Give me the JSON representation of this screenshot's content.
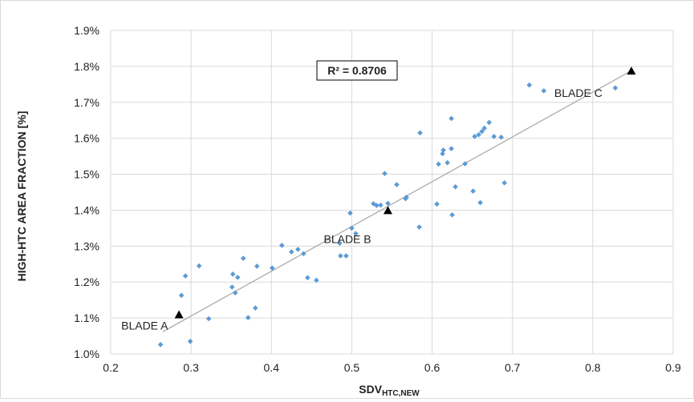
{
  "chart_data": {
    "type": "scatter",
    "xlabel_main": "SDV",
    "xlabel_sub": "HTC,NEW",
    "ylabel": "HIGH-HTC AREA FRACTION [%]",
    "xlim": [
      0.2,
      0.9
    ],
    "ylim": [
      1.0,
      1.9
    ],
    "x_ticks": [
      "0.2",
      "0.3",
      "0.4",
      "0.5",
      "0.6",
      "0.7",
      "0.8",
      "0.9"
    ],
    "y_ticks": [
      "1.0%",
      "1.1%",
      "1.2%",
      "1.3%",
      "1.4%",
      "1.5%",
      "1.6%",
      "1.7%",
      "1.8%",
      "1.9%"
    ],
    "grid": true,
    "marker_color": "#5b9bd5",
    "trend_color": "#a6a6a6",
    "annotation": "R² = 0.8706",
    "trendline": {
      "x": [
        0.265,
        0.848
      ],
      "y": [
        1.062,
        1.788
      ]
    },
    "points": [
      {
        "x": 0.262,
        "y": 1.026
      },
      {
        "x": 0.288,
        "y": 1.163
      },
      {
        "x": 0.293,
        "y": 1.217
      },
      {
        "x": 0.299,
        "y": 1.035
      },
      {
        "x": 0.31,
        "y": 1.245
      },
      {
        "x": 0.322,
        "y": 1.098
      },
      {
        "x": 0.351,
        "y": 1.186
      },
      {
        "x": 0.352,
        "y": 1.222
      },
      {
        "x": 0.355,
        "y": 1.17
      },
      {
        "x": 0.358,
        "y": 1.213
      },
      {
        "x": 0.365,
        "y": 1.266
      },
      {
        "x": 0.371,
        "y": 1.101
      },
      {
        "x": 0.38,
        "y": 1.128
      },
      {
        "x": 0.382,
        "y": 1.244
      },
      {
        "x": 0.401,
        "y": 1.239
      },
      {
        "x": 0.413,
        "y": 1.302
      },
      {
        "x": 0.425,
        "y": 1.284
      },
      {
        "x": 0.433,
        "y": 1.291
      },
      {
        "x": 0.44,
        "y": 1.279
      },
      {
        "x": 0.445,
        "y": 1.212
      },
      {
        "x": 0.456,
        "y": 1.205
      },
      {
        "x": 0.485,
        "y": 1.308
      },
      {
        "x": 0.486,
        "y": 1.273
      },
      {
        "x": 0.493,
        "y": 1.273
      },
      {
        "x": 0.498,
        "y": 1.392
      },
      {
        "x": 0.5,
        "y": 1.35
      },
      {
        "x": 0.505,
        "y": 1.335
      },
      {
        "x": 0.527,
        "y": 1.418
      },
      {
        "x": 0.531,
        "y": 1.413
      },
      {
        "x": 0.536,
        "y": 1.414
      },
      {
        "x": 0.541,
        "y": 1.502
      },
      {
        "x": 0.545,
        "y": 1.419
      },
      {
        "x": 0.556,
        "y": 1.471
      },
      {
        "x": 0.567,
        "y": 1.432
      },
      {
        "x": 0.568,
        "y": 1.436
      },
      {
        "x": 0.584,
        "y": 1.353
      },
      {
        "x": 0.585,
        "y": 1.615
      },
      {
        "x": 0.606,
        "y": 1.417
      },
      {
        "x": 0.608,
        "y": 1.528
      },
      {
        "x": 0.613,
        "y": 1.557
      },
      {
        "x": 0.614,
        "y": 1.567
      },
      {
        "x": 0.619,
        "y": 1.532
      },
      {
        "x": 0.624,
        "y": 1.655
      },
      {
        "x": 0.624,
        "y": 1.571
      },
      {
        "x": 0.625,
        "y": 1.387
      },
      {
        "x": 0.629,
        "y": 1.465
      },
      {
        "x": 0.641,
        "y": 1.529
      },
      {
        "x": 0.651,
        "y": 1.453
      },
      {
        "x": 0.653,
        "y": 1.605
      },
      {
        "x": 0.658,
        "y": 1.61
      },
      {
        "x": 0.66,
        "y": 1.421
      },
      {
        "x": 0.662,
        "y": 1.619
      },
      {
        "x": 0.665,
        "y": 1.628
      },
      {
        "x": 0.671,
        "y": 1.644
      },
      {
        "x": 0.677,
        "y": 1.605
      },
      {
        "x": 0.686,
        "y": 1.603
      },
      {
        "x": 0.69,
        "y": 1.476
      },
      {
        "x": 0.721,
        "y": 1.748
      },
      {
        "x": 0.739,
        "y": 1.732
      },
      {
        "x": 0.828,
        "y": 1.74
      }
    ],
    "blades": [
      {
        "name": "BLADE A",
        "x": 0.285,
        "y": 1.108
      },
      {
        "name": "BLADE B",
        "x": 0.545,
        "y": 1.398
      },
      {
        "name": "BLADE C",
        "x": 0.848,
        "y": 1.786
      }
    ]
  }
}
